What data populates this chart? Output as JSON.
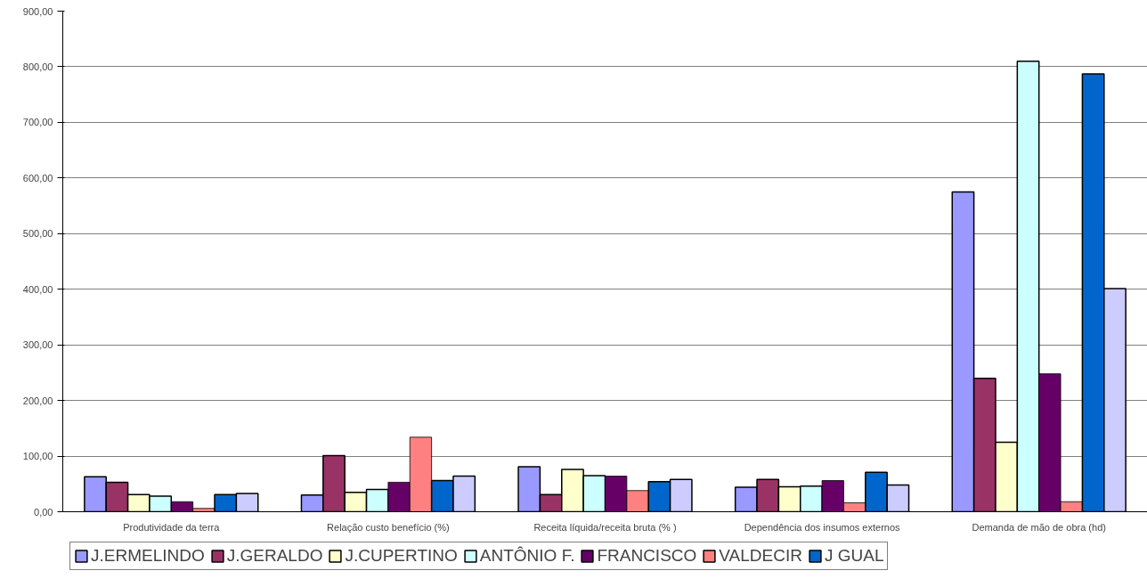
{
  "chart_data": {
    "type": "bar",
    "categories": [
      "Produtividade da terra",
      "Relação custo benefício (%)",
      "Receita líquida/receita bruta (% )",
      "Dependência dos insumos externos",
      "Demanda de mão de obra (hd)"
    ],
    "series": [
      {
        "name": "J.ERMELINDO",
        "color": "#9999ff",
        "values": [
          63,
          30,
          81,
          44,
          575
        ]
      },
      {
        "name": "J.GERALDO",
        "color": "#993366",
        "values": [
          53,
          101,
          31,
          58,
          240
        ]
      },
      {
        "name": "J.CUPERTINO",
        "color": "#ffffcc",
        "values": [
          31,
          35,
          76,
          45,
          125
        ]
      },
      {
        "name": "ANTÔNIO F.",
        "color": "#ccffff",
        "values": [
          28,
          40,
          65,
          46,
          810
        ]
      },
      {
        "name": "FRANCISCO",
        "color": "#660066",
        "values": [
          18,
          53,
          64,
          56,
          248
        ]
      },
      {
        "name": "VALDECIR",
        "color": "#ff8080",
        "values": [
          6,
          134,
          38,
          16,
          18
        ]
      },
      {
        "name": "J GUAL",
        "color": "#0066cc",
        "values": [
          31,
          56,
          54,
          71,
          787
        ]
      },
      {
        "color": "#ccccff",
        "values": [
          33,
          64,
          58,
          48,
          401
        ]
      }
    ],
    "ylim": [
      0,
      900
    ],
    "yticks": [
      {
        "value": 0,
        "label": "0,00"
      },
      {
        "value": 100,
        "label": "100,00"
      },
      {
        "value": 200,
        "label": "200,00"
      },
      {
        "value": 300,
        "label": "300,00"
      },
      {
        "value": 400,
        "label": "400,00"
      },
      {
        "value": 500,
        "label": "500,00"
      },
      {
        "value": 600,
        "label": "600,00"
      },
      {
        "value": 700,
        "label": "700,00"
      },
      {
        "value": 800,
        "label": "800,00"
      },
      {
        "value": 900,
        "label": "900,00"
      }
    ],
    "grid": "y",
    "legend": "bottom"
  }
}
